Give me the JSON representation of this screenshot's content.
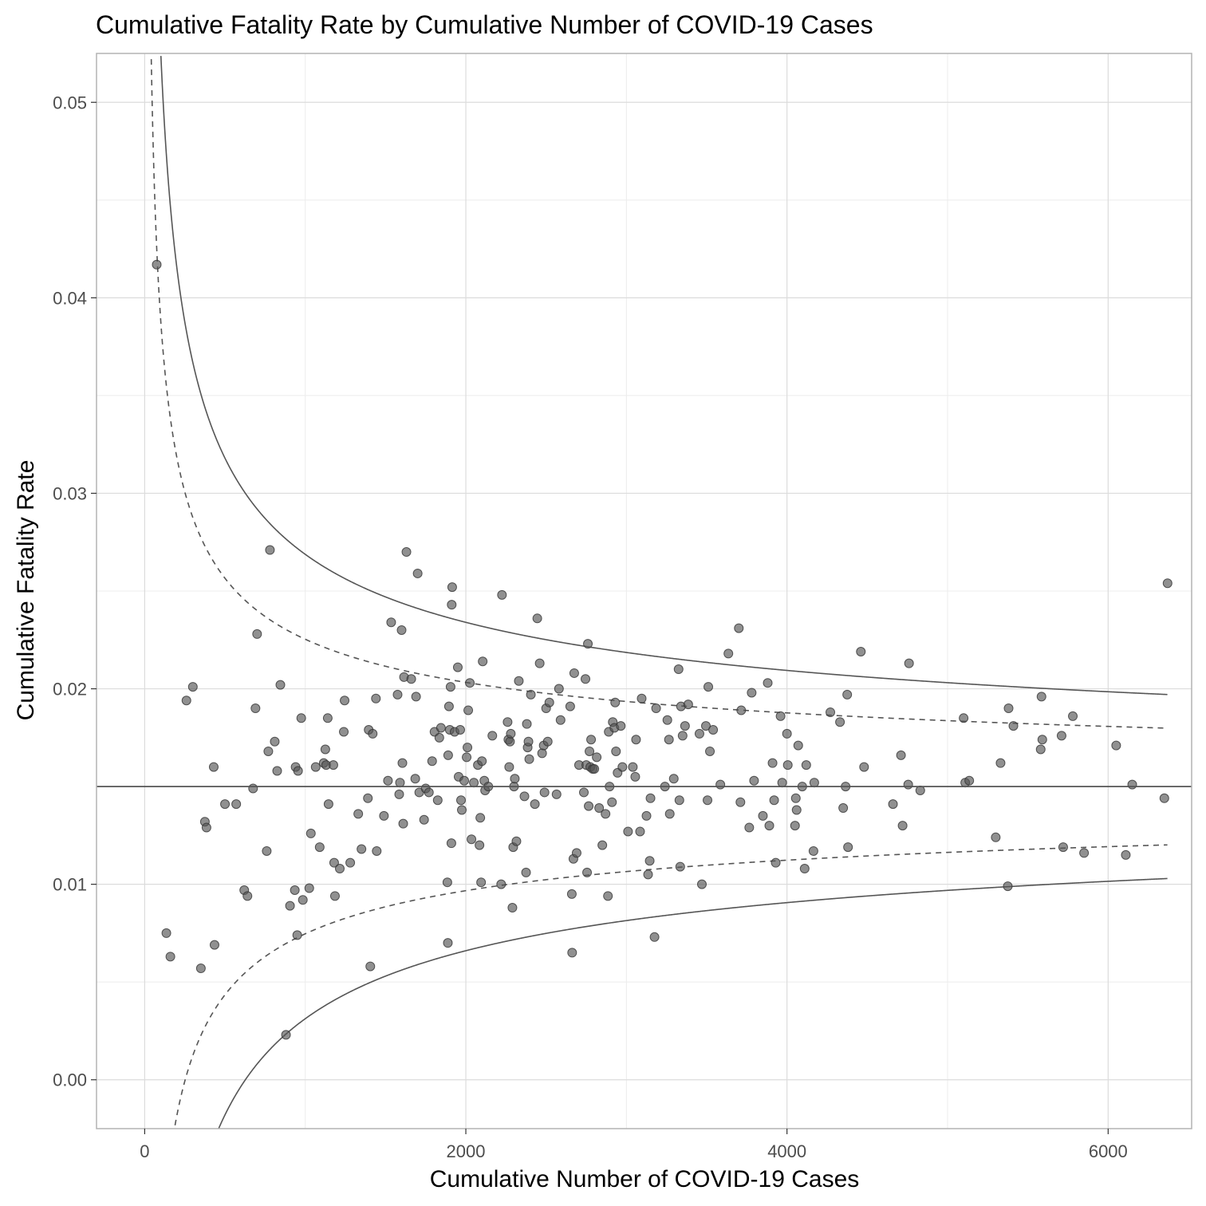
{
  "chart_data": {
    "type": "scatter",
    "title": "Cumulative Fatality Rate by Cumulative Number of COVID-19 Cases",
    "xlabel": "Cumulative Number of COVID-19 Cases",
    "ylabel": "Cumulative Fatality Rate",
    "xlim": [
      -300,
      6520
    ],
    "ylim": [
      -0.0025,
      0.0525
    ],
    "x_ticks": [
      0,
      2000,
      4000,
      6000
    ],
    "x_tick_labels": [
      "0",
      "2000",
      "4000",
      "6000"
    ],
    "y_ticks": [
      0.0,
      0.01,
      0.02,
      0.03,
      0.04,
      0.05
    ],
    "y_tick_labels": [
      "0.00",
      "0.01",
      "0.02",
      "0.03",
      "0.04",
      "0.05"
    ],
    "grid": true,
    "reference_line": {
      "y": 0.015,
      "style": "solid"
    },
    "funnel_limits": [
      {
        "style": "solid",
        "z": 3.09
      },
      {
        "style": "dashed",
        "z": 1.96
      }
    ],
    "colors": {
      "points": "#555555",
      "lines": "#555555",
      "grid": "#dcdcdc",
      "panel_border": "#b3b3b3"
    },
    "points": [
      [
        75,
        0.0417
      ],
      [
        135,
        0.0075
      ],
      [
        160,
        0.0063
      ],
      [
        260,
        0.0194
      ],
      [
        300,
        0.0201
      ],
      [
        350,
        0.0057
      ],
      [
        375,
        0.0132
      ],
      [
        385,
        0.0129
      ],
      [
        430,
        0.016
      ],
      [
        435,
        0.0069
      ],
      [
        500,
        0.0141
      ],
      [
        570,
        0.0141
      ],
      [
        620,
        0.0097
      ],
      [
        640,
        0.0094
      ],
      [
        675,
        0.0149
      ],
      [
        690,
        0.019
      ],
      [
        700,
        0.0228
      ],
      [
        760,
        0.0117
      ],
      [
        770,
        0.0168
      ],
      [
        780,
        0.0271
      ],
      [
        810,
        0.0173
      ],
      [
        825,
        0.0158
      ],
      [
        845,
        0.0202
      ],
      [
        880,
        0.0023
      ],
      [
        905,
        0.0089
      ],
      [
        935,
        0.0097
      ],
      [
        940,
        0.016
      ],
      [
        950,
        0.0074
      ],
      [
        955,
        0.0158
      ],
      [
        975,
        0.0185
      ],
      [
        985,
        0.0092
      ],
      [
        1025,
        0.0098
      ],
      [
        1035,
        0.0126
      ],
      [
        1065,
        0.016
      ],
      [
        1090,
        0.0119
      ],
      [
        1115,
        0.0162
      ],
      [
        1125,
        0.0169
      ],
      [
        1130,
        0.0161
      ],
      [
        1140,
        0.0185
      ],
      [
        1145,
        0.0141
      ],
      [
        1175,
        0.0161
      ],
      [
        1180,
        0.0111
      ],
      [
        1185,
        0.0094
      ],
      [
        1215,
        0.0108
      ],
      [
        1240,
        0.0178
      ],
      [
        1245,
        0.0194
      ],
      [
        1280,
        0.0111
      ],
      [
        1330,
        0.0136
      ],
      [
        1350,
        0.0118
      ],
      [
        1390,
        0.0144
      ],
      [
        1395,
        0.0179
      ],
      [
        1405,
        0.0058
      ],
      [
        1420,
        0.0177
      ],
      [
        1440,
        0.0195
      ],
      [
        1445,
        0.0117
      ],
      [
        1490,
        0.0135
      ],
      [
        1515,
        0.0153
      ],
      [
        1535,
        0.0234
      ],
      [
        1575,
        0.0197
      ],
      [
        1585,
        0.0146
      ],
      [
        1590,
        0.0152
      ],
      [
        1600,
        0.023
      ],
      [
        1605,
        0.0162
      ],
      [
        1610,
        0.0131
      ],
      [
        1615,
        0.0206
      ],
      [
        1630,
        0.027
      ],
      [
        1660,
        0.0205
      ],
      [
        1685,
        0.0154
      ],
      [
        1690,
        0.0196
      ],
      [
        1700,
        0.0259
      ],
      [
        1710,
        0.0147
      ],
      [
        1740,
        0.0133
      ],
      [
        1750,
        0.0149
      ],
      [
        1770,
        0.0147
      ],
      [
        1790,
        0.0163
      ],
      [
        1805,
        0.0178
      ],
      [
        1825,
        0.0143
      ],
      [
        1835,
        0.0175
      ],
      [
        1845,
        0.018
      ],
      [
        1885,
        0.0101
      ],
      [
        1888,
        0.007
      ],
      [
        1890,
        0.0166
      ],
      [
        1895,
        0.0191
      ],
      [
        1900,
        0.0179
      ],
      [
        1905,
        0.0201
      ],
      [
        1910,
        0.0121
      ],
      [
        1912,
        0.0243
      ],
      [
        1915,
        0.0252
      ],
      [
        1930,
        0.0178
      ],
      [
        1950,
        0.0211
      ],
      [
        1955,
        0.0155
      ],
      [
        1965,
        0.0179
      ],
      [
        1970,
        0.0143
      ],
      [
        1975,
        0.0138
      ],
      [
        1990,
        0.0153
      ],
      [
        2005,
        0.0165
      ],
      [
        2010,
        0.017
      ],
      [
        2015,
        0.0189
      ],
      [
        2025,
        0.0203
      ],
      [
        2035,
        0.0123
      ],
      [
        2050,
        0.0152
      ],
      [
        2075,
        0.0161
      ],
      [
        2085,
        0.012
      ],
      [
        2090,
        0.0134
      ],
      [
        2095,
        0.0101
      ],
      [
        2100,
        0.0163
      ],
      [
        2105,
        0.0214
      ],
      [
        2115,
        0.0153
      ],
      [
        2120,
        0.0148
      ],
      [
        2140,
        0.015
      ],
      [
        2165,
        0.0176
      ],
      [
        2220,
        0.01
      ],
      [
        2225,
        0.0248
      ],
      [
        2260,
        0.0183
      ],
      [
        2265,
        0.0174
      ],
      [
        2270,
        0.016
      ],
      [
        2275,
        0.0173
      ],
      [
        2280,
        0.0177
      ],
      [
        2290,
        0.0088
      ],
      [
        2295,
        0.0119
      ],
      [
        2300,
        0.015
      ],
      [
        2305,
        0.0154
      ],
      [
        2315,
        0.0122
      ],
      [
        2330,
        0.0204
      ],
      [
        2365,
        0.0145
      ],
      [
        2375,
        0.0106
      ],
      [
        2380,
        0.0182
      ],
      [
        2385,
        0.017
      ],
      [
        2390,
        0.0173
      ],
      [
        2395,
        0.0164
      ],
      [
        2405,
        0.0197
      ],
      [
        2430,
        0.0141
      ],
      [
        2445,
        0.0236
      ],
      [
        2460,
        0.0213
      ],
      [
        2475,
        0.0167
      ],
      [
        2485,
        0.0171
      ],
      [
        2490,
        0.0147
      ],
      [
        2500,
        0.019
      ],
      [
        2510,
        0.0173
      ],
      [
        2520,
        0.0193
      ],
      [
        2565,
        0.0146
      ],
      [
        2580,
        0.02
      ],
      [
        2590,
        0.0184
      ],
      [
        2650,
        0.0191
      ],
      [
        2660,
        0.0095
      ],
      [
        2662,
        0.0065
      ],
      [
        2670,
        0.0113
      ],
      [
        2675,
        0.0208
      ],
      [
        2690,
        0.0116
      ],
      [
        2705,
        0.0161
      ],
      [
        2735,
        0.0147
      ],
      [
        2745,
        0.0205
      ],
      [
        2750,
        0.0161
      ],
      [
        2755,
        0.0106
      ],
      [
        2760,
        0.0223
      ],
      [
        2765,
        0.014
      ],
      [
        2770,
        0.0168
      ],
      [
        2775,
        0.016
      ],
      [
        2780,
        0.0174
      ],
      [
        2790,
        0.0159
      ],
      [
        2800,
        0.0159
      ],
      [
        2815,
        0.0165
      ],
      [
        2830,
        0.0139
      ],
      [
        2850,
        0.012
      ],
      [
        2870,
        0.0136
      ],
      [
        2885,
        0.0094
      ],
      [
        2890,
        0.0178
      ],
      [
        2895,
        0.015
      ],
      [
        2910,
        0.0142
      ],
      [
        2915,
        0.0183
      ],
      [
        2925,
        0.018
      ],
      [
        2930,
        0.0193
      ],
      [
        2935,
        0.0168
      ],
      [
        2945,
        0.0157
      ],
      [
        2965,
        0.0181
      ],
      [
        2975,
        0.016
      ],
      [
        3010,
        0.0127
      ],
      [
        3040,
        0.016
      ],
      [
        3055,
        0.0155
      ],
      [
        3060,
        0.0174
      ],
      [
        3085,
        0.0127
      ],
      [
        3095,
        0.0195
      ],
      [
        3125,
        0.0135
      ],
      [
        3135,
        0.0105
      ],
      [
        3145,
        0.0112
      ],
      [
        3150,
        0.0144
      ],
      [
        3175,
        0.0073
      ],
      [
        3185,
        0.019
      ],
      [
        3240,
        0.015
      ],
      [
        3255,
        0.0184
      ],
      [
        3265,
        0.0174
      ],
      [
        3270,
        0.0136
      ],
      [
        3295,
        0.0154
      ],
      [
        3325,
        0.021
      ],
      [
        3330,
        0.0143
      ],
      [
        3335,
        0.0109
      ],
      [
        3340,
        0.0191
      ],
      [
        3350,
        0.0176
      ],
      [
        3365,
        0.0181
      ],
      [
        3385,
        0.0192
      ],
      [
        3455,
        0.0177
      ],
      [
        3470,
        0.01
      ],
      [
        3495,
        0.0181
      ],
      [
        3505,
        0.0143
      ],
      [
        3510,
        0.0201
      ],
      [
        3520,
        0.0168
      ],
      [
        3540,
        0.0179
      ],
      [
        3585,
        0.0151
      ],
      [
        3635,
        0.0218
      ],
      [
        3700,
        0.0231
      ],
      [
        3710,
        0.0142
      ],
      [
        3715,
        0.0189
      ],
      [
        3765,
        0.0129
      ],
      [
        3780,
        0.0198
      ],
      [
        3795,
        0.0153
      ],
      [
        3850,
        0.0135
      ],
      [
        3880,
        0.0203
      ],
      [
        3890,
        0.013
      ],
      [
        3910,
        0.0162
      ],
      [
        3920,
        0.0143
      ],
      [
        3930,
        0.0111
      ],
      [
        3960,
        0.0186
      ],
      [
        3970,
        0.0152
      ],
      [
        4000,
        0.0177
      ],
      [
        4005,
        0.0161
      ],
      [
        4050,
        0.013
      ],
      [
        4055,
        0.0144
      ],
      [
        4060,
        0.0138
      ],
      [
        4070,
        0.0171
      ],
      [
        4095,
        0.015
      ],
      [
        4110,
        0.0108
      ],
      [
        4120,
        0.0161
      ],
      [
        4165,
        0.0117
      ],
      [
        4170,
        0.0152
      ],
      [
        4270,
        0.0188
      ],
      [
        4330,
        0.0183
      ],
      [
        4350,
        0.0139
      ],
      [
        4365,
        0.015
      ],
      [
        4375,
        0.0197
      ],
      [
        4380,
        0.0119
      ],
      [
        4460,
        0.0219
      ],
      [
        4480,
        0.016
      ],
      [
        4660,
        0.0141
      ],
      [
        4710,
        0.0166
      ],
      [
        4720,
        0.013
      ],
      [
        4755,
        0.0151
      ],
      [
        4760,
        0.0213
      ],
      [
        4830,
        0.0148
      ],
      [
        5100,
        0.0185
      ],
      [
        5110,
        0.0152
      ],
      [
        5135,
        0.0153
      ],
      [
        5300,
        0.0124
      ],
      [
        5330,
        0.0162
      ],
      [
        5375,
        0.0099
      ],
      [
        5380,
        0.019
      ],
      [
        5410,
        0.0181
      ],
      [
        5580,
        0.0169
      ],
      [
        5585,
        0.0196
      ],
      [
        5590,
        0.0174
      ],
      [
        5710,
        0.0176
      ],
      [
        5720,
        0.0119
      ],
      [
        5780,
        0.0186
      ],
      [
        5850,
        0.0116
      ],
      [
        6050,
        0.0171
      ],
      [
        6110,
        0.0115
      ],
      [
        6150,
        0.0151
      ],
      [
        6350,
        0.0144
      ],
      [
        6370,
        0.0254
      ]
    ]
  }
}
